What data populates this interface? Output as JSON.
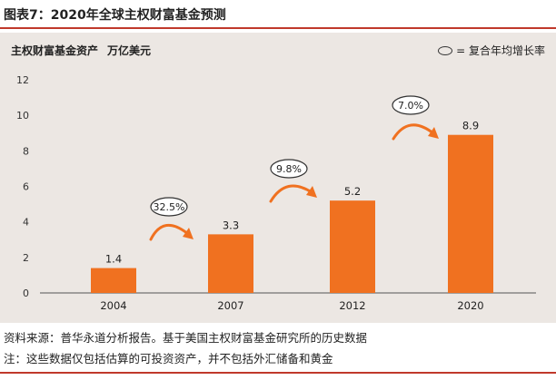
{
  "figure": {
    "title": "图表7：2020年全球主权财富基金预测"
  },
  "panel": {
    "title": "主权财富基金资产",
    "unit": "万亿美元",
    "legend_text": "= 复合年均增长率"
  },
  "footnotes": {
    "source": "资料来源：普华永道分析报告。基于美国主权财富基金研究所的历史数据",
    "note": "注：这些数据仅包括估算的可投资资产，并不包括外汇储备和黄金"
  },
  "colors": {
    "bar": "#f07120",
    "arrow": "#f07120",
    "panel_bg": "#ece7e3",
    "accent_rule": "#c0392b"
  },
  "chart_data": {
    "type": "bar",
    "title": "主权财富基金资产",
    "ylabel": "万亿美元",
    "xlabel": "",
    "categories": [
      "2004",
      "2007",
      "2012",
      "2020"
    ],
    "values": [
      1.4,
      3.3,
      5.2,
      8.9
    ],
    "value_labels": [
      "1.4",
      "3.3",
      "5.2",
      "8.9"
    ],
    "ylim": [
      0,
      12
    ],
    "yticks": [
      0,
      2,
      4,
      6,
      8,
      10,
      12
    ],
    "grid": false,
    "annotations": [
      {
        "label": "32.5%",
        "from": "2004",
        "to": "2007"
      },
      {
        "label": "9.8%",
        "from": "2007",
        "to": "2012"
      },
      {
        "label": "7.0%",
        "from": "2012",
        "to": "2020"
      }
    ]
  }
}
